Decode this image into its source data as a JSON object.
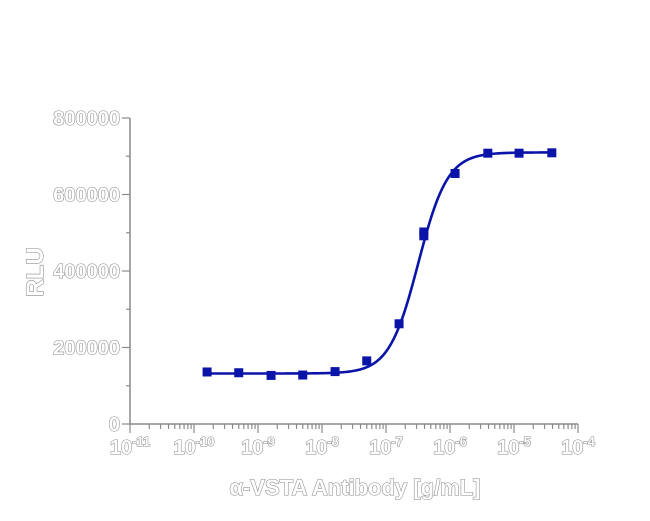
{
  "chart_data": {
    "type": "scatter",
    "title": "",
    "xlabel": "α-VSTA Antibody [g/mL]",
    "ylabel": "RLU",
    "x_scale": "log",
    "xlim": [
      1e-11,
      0.0001
    ],
    "ylim": [
      0,
      800000
    ],
    "x_tick_labels": [
      {
        "base": "10",
        "exp": "-11"
      },
      {
        "base": "10",
        "exp": "-10"
      },
      {
        "base": "10",
        "exp": "-9"
      },
      {
        "base": "10",
        "exp": "-8"
      },
      {
        "base": "10",
        "exp": "-7"
      },
      {
        "base": "10",
        "exp": "-6"
      },
      {
        "base": "10",
        "exp": "-5"
      },
      {
        "base": "10",
        "exp": "-4"
      }
    ],
    "y_tick_labels": [
      "0",
      "200000",
      "400000",
      "600000",
      "800000"
    ],
    "grid": false,
    "legend": "none",
    "marker_color": "#0a14a8",
    "curve_color": "#0a14a8",
    "series": [
      {
        "points": [
          {
            "x": 1.6e-10,
            "y": 136000
          },
          {
            "x": 5e-10,
            "y": 134000
          },
          {
            "x": 1.6e-09,
            "y": 127000
          },
          {
            "x": 5e-09,
            "y": 128000
          },
          {
            "x": 1.6e-08,
            "y": 137000
          },
          {
            "x": 5e-08,
            "y": 165000
          },
          {
            "x": 1.6e-07,
            "y": 262000
          },
          {
            "x": 3.9e-07,
            "y": 492000
          },
          {
            "x": 3.9e-07,
            "y": 502000
          },
          {
            "x": 1.2e-06,
            "y": 655000
          },
          {
            "x": 3.9e-06,
            "y": 708000
          },
          {
            "x": 1.2e-05,
            "y": 708000
          },
          {
            "x": 3.9e-05,
            "y": 709000
          }
        ]
      }
    ],
    "fit_curve": {
      "model": "4PL",
      "bottom": 132000,
      "top": 710000,
      "ec50": 3.2e-07,
      "hill": 1.9,
      "x_range": [
        1.5e-10,
        4e-05
      ]
    }
  }
}
